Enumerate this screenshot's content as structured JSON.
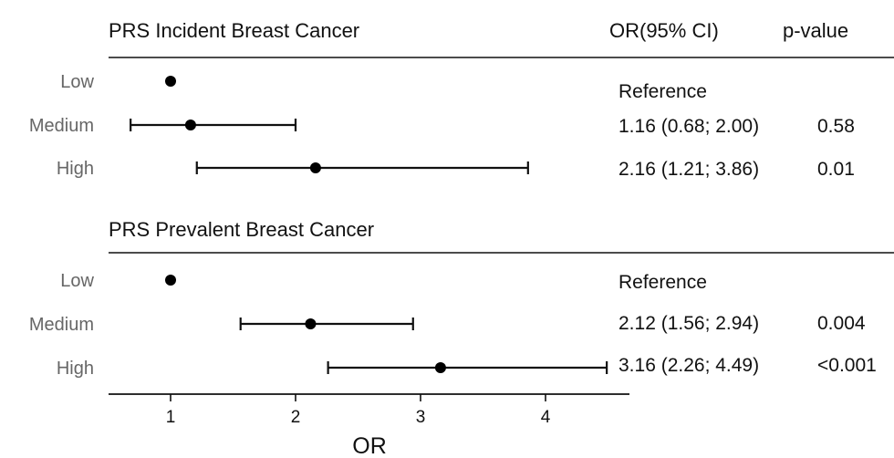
{
  "columns": {
    "or_header": "OR(95% CI)",
    "p_header": "p-value"
  },
  "chart_data": {
    "type": "forest",
    "xlabel": "OR",
    "xlim": [
      0.5,
      4.7
    ],
    "xticks": [
      1,
      2,
      3,
      4
    ],
    "reference_line": null,
    "panels": [
      {
        "title": "PRS Incident Breast Cancer",
        "rows": [
          {
            "label": "Low",
            "or": 1.0,
            "ci_low": null,
            "ci_high": null,
            "or_ci_text": "Reference",
            "p_value_text": ""
          },
          {
            "label": "Medium",
            "or": 1.16,
            "ci_low": 0.68,
            "ci_high": 2.0,
            "or_ci_text": "1.16 (0.68; 2.00)",
            "p_value_text": "0.58"
          },
          {
            "label": "High",
            "or": 2.16,
            "ci_low": 1.21,
            "ci_high": 3.86,
            "or_ci_text": "2.16 (1.21; 3.86)",
            "p_value_text": "0.01"
          }
        ]
      },
      {
        "title": "PRS Prevalent Breast Cancer",
        "rows": [
          {
            "label": "Low",
            "or": 1.0,
            "ci_low": null,
            "ci_high": null,
            "or_ci_text": "Reference",
            "p_value_text": ""
          },
          {
            "label": "Medium",
            "or": 2.12,
            "ci_low": 1.56,
            "ci_high": 2.94,
            "or_ci_text": "2.12 (1.56; 2.94)",
            "p_value_text": "0.004"
          },
          {
            "label": "High",
            "or": 3.16,
            "ci_low": 2.26,
            "ci_high": 4.49,
            "or_ci_text": "3.16 (2.26; 4.49)",
            "p_value_text": "<0.001"
          }
        ]
      }
    ],
    "colors": {
      "text": "#111111",
      "muted": "#666666",
      "line": "#111111",
      "point": "#000000"
    }
  }
}
